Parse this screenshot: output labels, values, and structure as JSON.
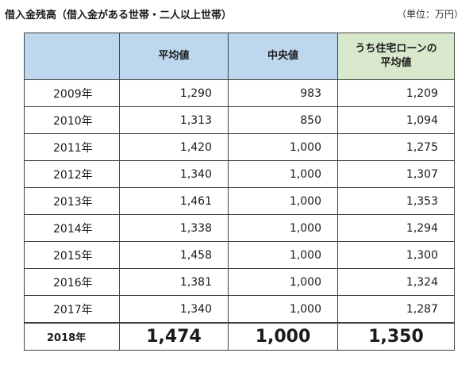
{
  "header": {
    "title": "借入金残高（借入金がある世帯・二人以上世帯）",
    "unit": "（単位：万円）"
  },
  "table": {
    "columns": [
      "",
      "平均値",
      "中央値",
      "うち住宅ローンの平均値"
    ],
    "column_lines": {
      "home_line1": "うち住宅ローンの",
      "home_line2": "平均値"
    },
    "rows": [
      {
        "year": "2009年",
        "avg": "1,290",
        "median": "983",
        "home": "1,209"
      },
      {
        "year": "2010年",
        "avg": "1,313",
        "median": "850",
        "home": "1,094"
      },
      {
        "year": "2011年",
        "avg": "1,420",
        "median": "1,000",
        "home": "1,275"
      },
      {
        "year": "2012年",
        "avg": "1,340",
        "median": "1,000",
        "home": "1,307"
      },
      {
        "year": "2013年",
        "avg": "1,461",
        "median": "1,000",
        "home": "1,353"
      },
      {
        "year": "2014年",
        "avg": "1,338",
        "median": "1,000",
        "home": "1,294"
      },
      {
        "year": "2015年",
        "avg": "1,458",
        "median": "1,000",
        "home": "1,300"
      },
      {
        "year": "2016年",
        "avg": "1,381",
        "median": "1,000",
        "home": "1,324"
      },
      {
        "year": "2017年",
        "avg": "1,340",
        "median": "1,000",
        "home": "1,287"
      },
      {
        "year": "2018年",
        "avg": "1,474",
        "median": "1,000",
        "home": "1,350"
      }
    ]
  },
  "colors": {
    "header_blue": "#bdd7ee",
    "header_green": "#d8e8cc",
    "border": "#404040"
  }
}
